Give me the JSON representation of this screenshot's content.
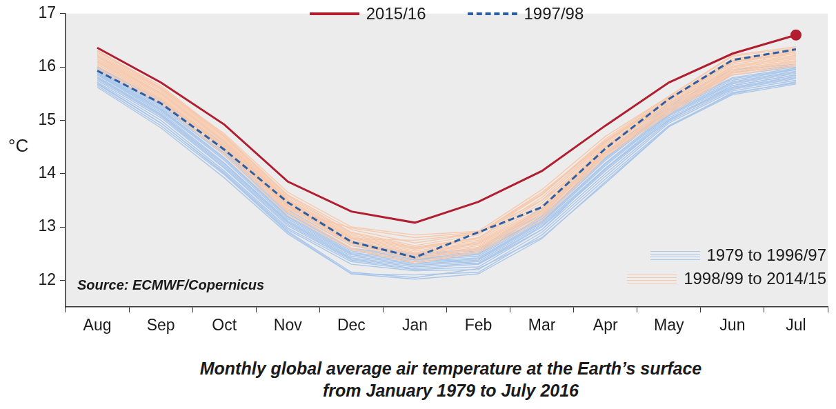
{
  "chart_data": {
    "type": "line",
    "title": [
      "Monthly global average air temperature at the Earth’s surface",
      "from January 1979 to July 2016"
    ],
    "y_label": "°C",
    "annotations": [
      "Source: ECMWF/Copernicus"
    ],
    "categories": [
      "Aug",
      "Sep",
      "Oct",
      "Nov",
      "Dec",
      "Jan",
      "Feb",
      "Mar",
      "Apr",
      "May",
      "Jun",
      "Jul"
    ],
    "ylim": [
      11.5,
      17
    ],
    "yticks": [
      12,
      13,
      14,
      15,
      16,
      17
    ],
    "grid": false,
    "series": [
      {
        "name": "2015/16",
        "color": "#b01e30",
        "marker": "end",
        "values": [
          16.36,
          15.71,
          14.92,
          13.85,
          13.29,
          13.08,
          13.47,
          14.05,
          14.9,
          15.71,
          16.25,
          16.6
        ]
      },
      {
        "name": "1997/98",
        "color": "#2d5fa5",
        "line_style": "dashed",
        "values": [
          15.93,
          15.32,
          14.45,
          13.46,
          12.72,
          12.43,
          12.9,
          13.37,
          14.47,
          15.4,
          16.13,
          16.33
        ]
      },
      {
        "name": "1979 to 1996/97",
        "color": "#a9c6eb",
        "lines": [
          [
            15.62,
            14.86,
            13.92,
            12.87,
            12.12,
            12.02,
            12.12,
            12.78,
            13.85,
            14.88,
            15.48,
            15.68
          ],
          [
            15.65,
            14.9,
            13.98,
            12.9,
            12.12,
            12.1,
            12.15,
            12.85,
            13.9,
            14.9,
            15.5,
            15.72
          ],
          [
            15.7,
            14.95,
            14.02,
            12.95,
            12.3,
            12.18,
            12.2,
            12.9,
            13.95,
            14.95,
            15.55,
            15.75
          ],
          [
            15.72,
            15.0,
            14.05,
            12.98,
            12.35,
            12.2,
            12.25,
            12.95,
            14.0,
            14.98,
            15.58,
            15.78
          ],
          [
            15.75,
            15.05,
            14.1,
            13.02,
            12.38,
            12.22,
            12.3,
            13.0,
            14.05,
            15.02,
            15.6,
            15.8
          ],
          [
            15.78,
            15.08,
            14.12,
            13.05,
            12.4,
            12.25,
            12.32,
            13.02,
            14.08,
            15.05,
            15.62,
            15.82
          ],
          [
            15.8,
            15.1,
            14.15,
            13.08,
            12.42,
            12.28,
            12.35,
            13.05,
            14.1,
            15.08,
            15.65,
            15.85
          ],
          [
            15.82,
            15.12,
            14.18,
            13.1,
            12.45,
            12.3,
            12.38,
            13.08,
            14.15,
            15.1,
            15.68,
            15.88
          ],
          [
            15.85,
            15.15,
            14.2,
            13.12,
            12.48,
            12.32,
            12.4,
            13.1,
            14.18,
            15.12,
            15.7,
            15.9
          ],
          [
            15.86,
            15.18,
            14.25,
            13.15,
            12.5,
            12.35,
            12.42,
            13.12,
            14.2,
            15.15,
            15.72,
            15.92
          ],
          [
            15.88,
            15.2,
            14.28,
            13.18,
            12.52,
            12.38,
            12.45,
            13.15,
            14.25,
            15.18,
            15.75,
            15.95
          ],
          [
            15.9,
            15.22,
            14.3,
            13.2,
            12.55,
            12.4,
            12.48,
            13.18,
            14.28,
            15.2,
            15.78,
            15.96
          ],
          [
            15.92,
            15.25,
            14.35,
            13.25,
            12.58,
            12.42,
            12.5,
            13.2,
            14.3,
            15.22,
            15.8,
            15.98
          ],
          [
            15.94,
            15.28,
            14.38,
            13.28,
            12.6,
            12.45,
            12.52,
            13.25,
            14.35,
            15.25,
            15.85,
            16.0
          ],
          [
            15.96,
            15.3,
            14.42,
            13.32,
            12.65,
            12.48,
            12.55,
            13.3,
            14.4,
            15.28,
            15.9,
            16.02
          ],
          [
            15.98,
            15.35,
            14.48,
            13.38,
            12.7,
            12.5,
            12.58,
            13.35,
            14.5,
            15.32,
            15.95,
            16.05
          ],
          [
            16.0,
            15.38,
            14.55,
            13.42,
            12.75,
            12.45,
            12.3,
            12.95,
            14.1,
            15.0,
            15.65,
            15.85
          ],
          [
            15.68,
            14.95,
            14.0,
            12.92,
            12.15,
            12.05,
            12.22,
            12.8,
            13.82,
            14.88,
            15.52,
            15.7
          ]
        ]
      },
      {
        "name": "1998/99 to 2014/15",
        "color": "#f8c8ab",
        "lines": [
          [
            15.95,
            15.32,
            14.35,
            13.22,
            12.58,
            12.32,
            12.52,
            13.12,
            14.32,
            15.12,
            15.85,
            16.02
          ],
          [
            15.98,
            15.35,
            14.4,
            13.28,
            12.6,
            12.35,
            12.55,
            13.18,
            14.35,
            15.15,
            15.88,
            16.05
          ],
          [
            16.02,
            15.38,
            14.45,
            13.3,
            12.65,
            12.4,
            12.58,
            13.22,
            14.38,
            15.18,
            15.9,
            16.08
          ],
          [
            16.05,
            15.4,
            14.48,
            13.35,
            12.68,
            12.42,
            12.6,
            13.25,
            14.4,
            15.2,
            15.92,
            16.1
          ],
          [
            16.08,
            15.42,
            14.5,
            13.38,
            12.7,
            12.45,
            12.62,
            13.28,
            14.42,
            15.22,
            15.95,
            16.12
          ],
          [
            16.1,
            15.45,
            14.52,
            13.4,
            12.72,
            12.48,
            12.65,
            13.3,
            14.45,
            15.25,
            15.98,
            16.15
          ],
          [
            16.12,
            15.48,
            14.55,
            13.42,
            12.75,
            12.5,
            12.68,
            13.32,
            14.48,
            15.28,
            16.0,
            16.18
          ],
          [
            16.15,
            15.5,
            14.58,
            13.45,
            12.78,
            12.52,
            12.7,
            13.35,
            14.5,
            15.3,
            16.02,
            16.2
          ],
          [
            16.18,
            15.52,
            14.6,
            13.48,
            12.8,
            12.55,
            12.72,
            13.4,
            14.52,
            15.32,
            16.05,
            16.22
          ],
          [
            16.2,
            15.55,
            14.62,
            13.5,
            12.82,
            12.58,
            12.75,
            13.45,
            14.55,
            15.35,
            16.08,
            16.25
          ],
          [
            16.22,
            15.58,
            14.65,
            13.52,
            12.85,
            12.6,
            12.78,
            13.5,
            14.58,
            15.38,
            16.1,
            16.28
          ],
          [
            16.25,
            15.6,
            14.68,
            13.55,
            12.88,
            12.62,
            12.8,
            13.55,
            14.6,
            15.4,
            16.12,
            16.3
          ],
          [
            16.28,
            15.62,
            14.7,
            13.58,
            12.9,
            12.65,
            12.85,
            13.6,
            14.62,
            15.42,
            16.15,
            16.32
          ],
          [
            16.3,
            15.65,
            14.72,
            13.6,
            12.95,
            12.7,
            12.88,
            13.62,
            14.65,
            15.45,
            16.2,
            16.35
          ],
          [
            16.32,
            15.6,
            14.75,
            13.65,
            13.0,
            12.85,
            12.92,
            13.7,
            14.7,
            15.45,
            16.22,
            16.38
          ],
          [
            16.05,
            15.4,
            14.45,
            13.32,
            12.98,
            12.8,
            12.9,
            13.5,
            14.4,
            15.2,
            15.95,
            16.12
          ],
          [
            16.15,
            15.52,
            14.6,
            13.45,
            12.78,
            12.75,
            12.88,
            13.65,
            14.6,
            15.38,
            16.1,
            16.25
          ]
        ]
      }
    ]
  }
}
